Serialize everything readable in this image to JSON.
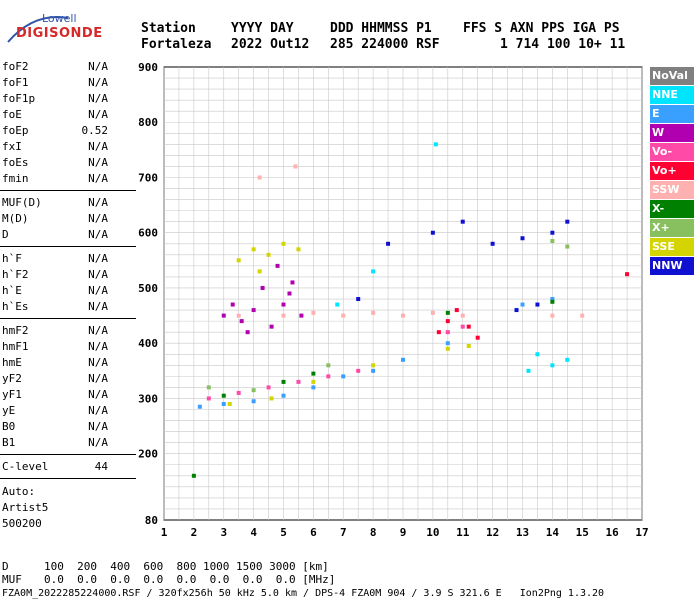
{
  "logo": {
    "line1": "Lowell",
    "line2": "DIGISONDE"
  },
  "header": {
    "labels": [
      "Station",
      "YYYY DAY",
      "DDD HHMMSS P1",
      "FFS S AXN PPS IGA PS"
    ],
    "values": [
      "Fortaleza",
      "2022 Out12",
      "285 224000 RSF",
      "1 714 100 10+ 11"
    ]
  },
  "params_a": [
    {
      "name": "foF2",
      "value": "N/A"
    },
    {
      "name": "foF1",
      "value": "N/A"
    },
    {
      "name": "foF1p",
      "value": "N/A"
    },
    {
      "name": "foE",
      "value": "N/A"
    },
    {
      "name": "foEp",
      "value": "0.52"
    },
    {
      "name": "fxI",
      "value": "N/A"
    },
    {
      "name": "foEs",
      "value": "N/A"
    },
    {
      "name": "fmin",
      "value": "N/A"
    }
  ],
  "params_b": [
    {
      "name": "MUF(D)",
      "value": "N/A"
    },
    {
      "name": "M(D)",
      "value": "N/A"
    },
    {
      "name": "D",
      "value": "N/A"
    }
  ],
  "params_c": [
    {
      "name": "h`F",
      "value": "N/A"
    },
    {
      "name": "h`F2",
      "value": "N/A"
    },
    {
      "name": "h`E",
      "value": "N/A"
    },
    {
      "name": "h`Es",
      "value": "N/A"
    }
  ],
  "params_d": [
    {
      "name": "hmF2",
      "value": "N/A"
    },
    {
      "name": "hmF1",
      "value": "N/A"
    },
    {
      "name": "hmE",
      "value": "N/A"
    },
    {
      "name": "yF2",
      "value": "N/A"
    },
    {
      "name": "yF1",
      "value": "N/A"
    },
    {
      "name": "yE",
      "value": "N/A"
    },
    {
      "name": "B0",
      "value": "N/A"
    },
    {
      "name": "B1",
      "value": "N/A"
    }
  ],
  "clevel": {
    "name": "C-level",
    "value": "44"
  },
  "auto": {
    "line1": "Auto:",
    "line2": "Artist5",
    "line3": "500200"
  },
  "legend": [
    {
      "label": "NoVal",
      "color": "#808080"
    },
    {
      "label": "NNE",
      "color": "#00e5ff"
    },
    {
      "label": "E",
      "color": "#3aa0ff"
    },
    {
      "label": "W",
      "color": "#b000b0"
    },
    {
      "label": "Vo-",
      "color": "#ff4aa8"
    },
    {
      "label": "Vo+",
      "color": "#ff0033"
    },
    {
      "label": "SSW",
      "color": "#ffb0b0"
    },
    {
      "label": "X-",
      "color": "#008000"
    },
    {
      "label": "X+",
      "color": "#88c060"
    },
    {
      "label": "SSE",
      "color": "#d4d400"
    },
    {
      "label": "NNW",
      "color": "#1010d0"
    }
  ],
  "footer": {
    "d_label": "D",
    "d_values": "100  200  400  600  800 1000 1500 3000 [km]",
    "muf_label": "MUF",
    "muf_values": "0.0  0.0  0.0  0.0  0.0  0.0  0.0  0.0 [MHz]",
    "file_line": "FZA0M_2022285224000.RSF / 320fx256h 50 kHz 5.0 km / DPS-4 FZA0M 904 / 3.9 S 321.6 E   Ion2Png 1.3.20"
  },
  "chart_data": {
    "type": "scatter",
    "title": "",
    "xlabel": "",
    "ylabel": "",
    "xlim": [
      1,
      17
    ],
    "ylim": [
      80,
      900
    ],
    "xticks": [
      1,
      2,
      3,
      4,
      5,
      6,
      7,
      8,
      9,
      10,
      11,
      12,
      13,
      14,
      15,
      16,
      17
    ],
    "yticks": [
      80,
      200,
      300,
      400,
      500,
      600,
      700,
      800,
      900
    ],
    "grid": true,
    "series": [
      {
        "name": "W",
        "color": "#b000b0",
        "points": [
          [
            3.0,
            450
          ],
          [
            3.3,
            470
          ],
          [
            3.6,
            440
          ],
          [
            4.0,
            460
          ],
          [
            4.3,
            500
          ],
          [
            4.6,
            430
          ],
          [
            5.0,
            470
          ],
          [
            5.3,
            510
          ],
          [
            5.6,
            450
          ],
          [
            3.8,
            420
          ],
          [
            4.8,
            540
          ],
          [
            5.2,
            490
          ]
        ]
      },
      {
        "name": "SSE",
        "color": "#d4d400",
        "points": [
          [
            3.5,
            550
          ],
          [
            4.0,
            570
          ],
          [
            4.5,
            560
          ],
          [
            5.0,
            580
          ],
          [
            5.5,
            570
          ],
          [
            4.2,
            530
          ],
          [
            3.2,
            290
          ],
          [
            4.6,
            300
          ],
          [
            6.0,
            330
          ],
          [
            8.0,
            360
          ],
          [
            10.5,
            390
          ],
          [
            11.2,
            395
          ]
        ]
      },
      {
        "name": "SSW",
        "color": "#ffb0b0",
        "points": [
          [
            3.5,
            450
          ],
          [
            5.0,
            450
          ],
          [
            6.0,
            455
          ],
          [
            7.0,
            450
          ],
          [
            8.0,
            455
          ],
          [
            9.0,
            450
          ],
          [
            10.0,
            455
          ],
          [
            11.0,
            450
          ],
          [
            14.0,
            450
          ],
          [
            15.0,
            450
          ],
          [
            4.2,
            700
          ],
          [
            5.4,
            720
          ]
        ]
      },
      {
        "name": "E",
        "color": "#3aa0ff",
        "points": [
          [
            2.2,
            285
          ],
          [
            3.0,
            290
          ],
          [
            4.0,
            295
          ],
          [
            5.0,
            305
          ],
          [
            6.0,
            320
          ],
          [
            7.0,
            340
          ],
          [
            8.0,
            350
          ],
          [
            9.0,
            370
          ],
          [
            10.5,
            400
          ],
          [
            13.0,
            470
          ],
          [
            14.0,
            480
          ]
        ]
      },
      {
        "name": "Vo-",
        "color": "#ff4aa8",
        "points": [
          [
            2.5,
            300
          ],
          [
            3.5,
            310
          ],
          [
            4.5,
            320
          ],
          [
            5.5,
            330
          ],
          [
            6.5,
            340
          ],
          [
            7.5,
            350
          ],
          [
            10.5,
            420
          ],
          [
            11.0,
            430
          ]
        ]
      },
      {
        "name": "Vo+",
        "color": "#ff0033",
        "points": [
          [
            10.2,
            420
          ],
          [
            10.5,
            440
          ],
          [
            10.8,
            460
          ],
          [
            11.2,
            430
          ],
          [
            11.5,
            410
          ],
          [
            16.5,
            525
          ]
        ]
      },
      {
        "name": "X-",
        "color": "#008000",
        "points": [
          [
            2.0,
            160
          ],
          [
            3.0,
            305
          ],
          [
            5.0,
            330
          ],
          [
            6.0,
            345
          ],
          [
            10.5,
            455
          ],
          [
            14.0,
            475
          ]
        ]
      },
      {
        "name": "X+",
        "color": "#88c060",
        "points": [
          [
            2.5,
            320
          ],
          [
            4.0,
            315
          ],
          [
            6.5,
            360
          ],
          [
            14.0,
            585
          ],
          [
            14.5,
            575
          ]
        ]
      },
      {
        "name": "NNE",
        "color": "#00e5ff",
        "points": [
          [
            10.1,
            760
          ],
          [
            13.5,
            380
          ],
          [
            14.0,
            360
          ],
          [
            13.2,
            350
          ],
          [
            14.5,
            370
          ],
          [
            8.0,
            530
          ],
          [
            6.8,
            470
          ]
        ]
      },
      {
        "name": "NNW",
        "color": "#1010d0",
        "points": [
          [
            7.5,
            480
          ],
          [
            8.5,
            580
          ],
          [
            10.0,
            600
          ],
          [
            11.0,
            620
          ],
          [
            12.0,
            580
          ],
          [
            13.0,
            590
          ],
          [
            14.0,
            600
          ],
          [
            14.5,
            620
          ],
          [
            13.5,
            470
          ],
          [
            12.8,
            460
          ]
        ]
      }
    ]
  }
}
